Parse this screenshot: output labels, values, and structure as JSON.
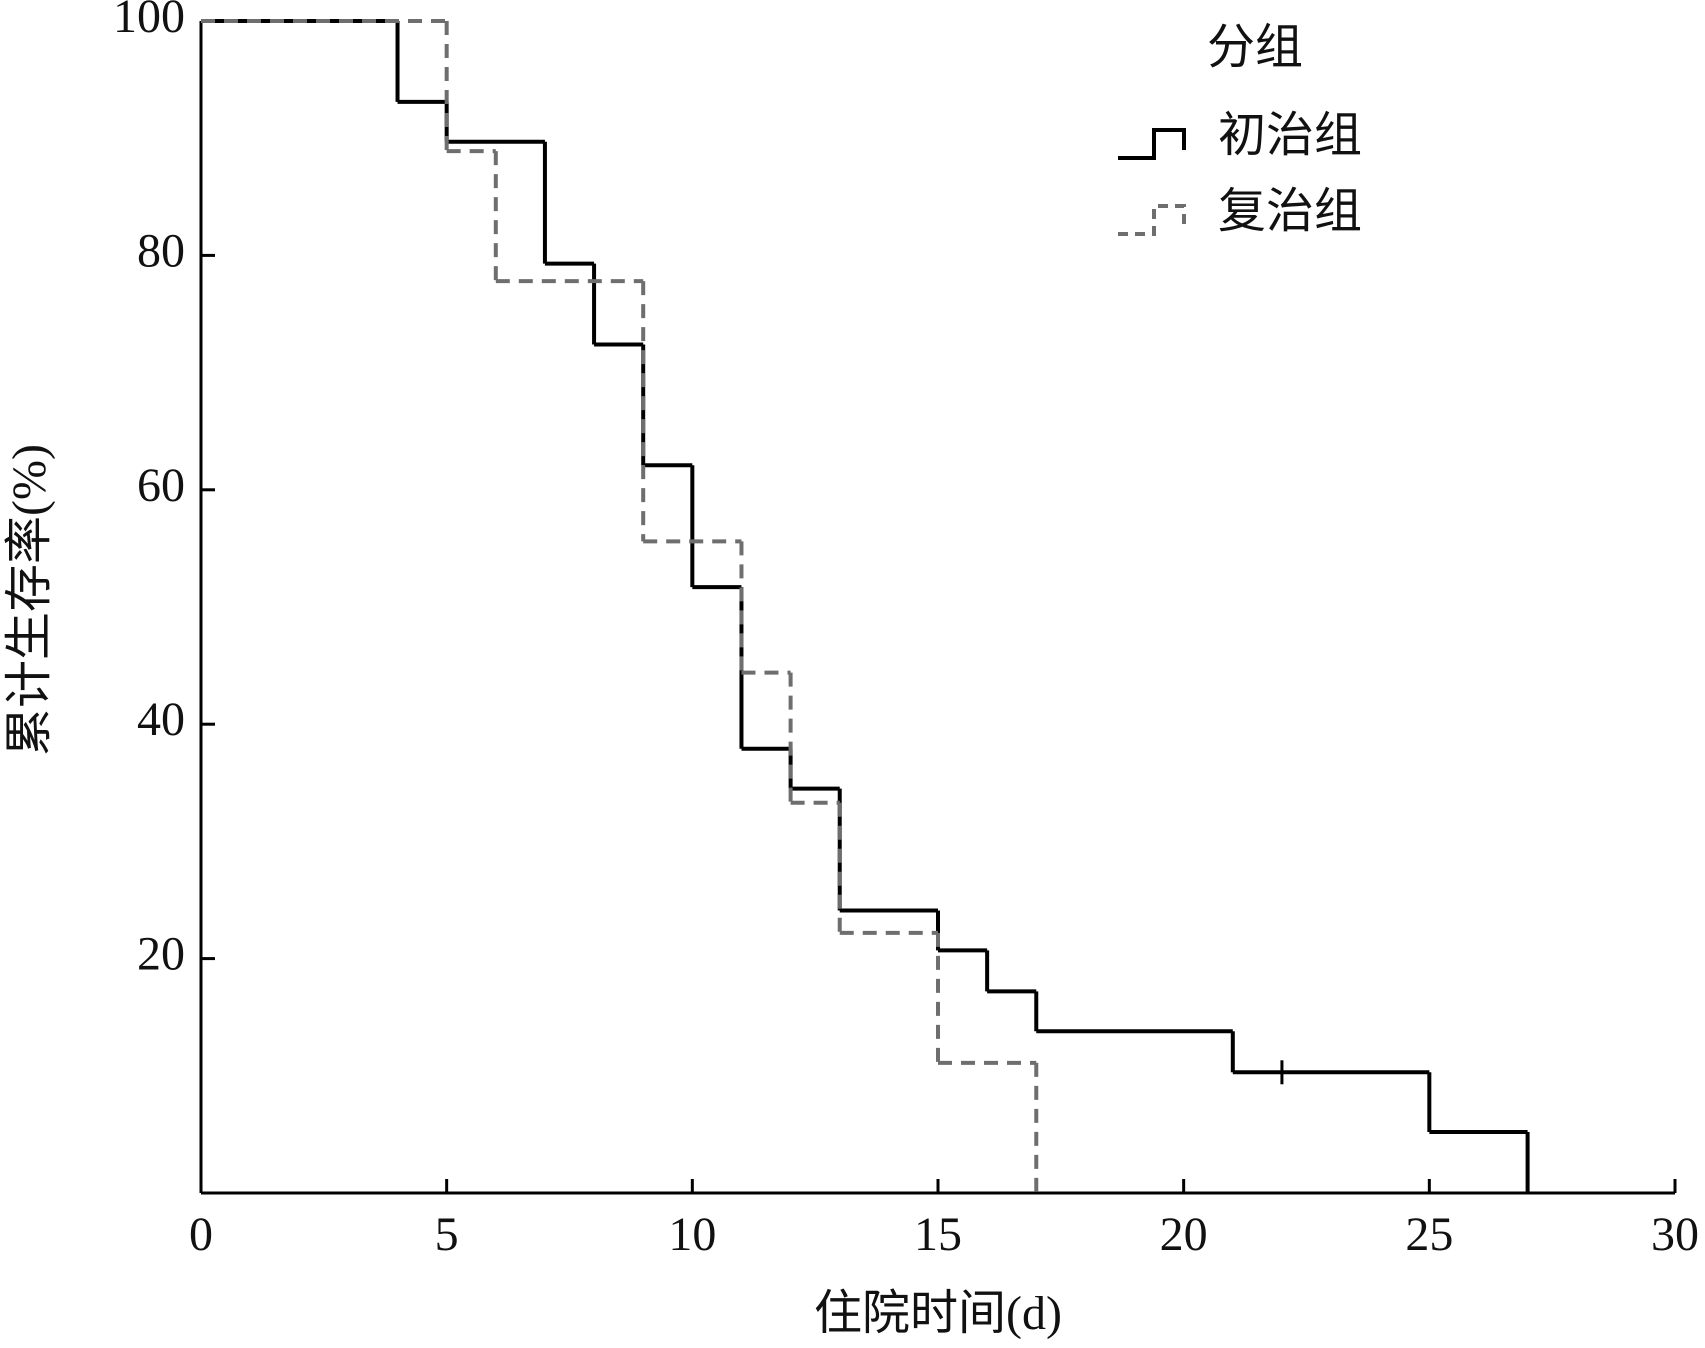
{
  "chart_data": {
    "type": "step",
    "xlabel": "住院时间(d)",
    "ylabel": "累计生存率(%)",
    "xlim": [
      0,
      30
    ],
    "ylim": [
      0,
      100
    ],
    "xticks": [
      0,
      5,
      10,
      15,
      20,
      25,
      30
    ],
    "yticks": [
      20,
      40,
      60,
      80,
      100
    ],
    "legend_title": "分组",
    "legend_loc": "upper right",
    "series": [
      {
        "name": "初治组",
        "color": "#000000",
        "dash": false,
        "x": [
          0,
          4,
          5,
          7,
          8,
          9,
          10,
          11,
          12,
          13,
          15,
          16,
          17,
          21,
          25,
          27
        ],
        "values": [
          100,
          93.1,
          89.7,
          79.3,
          72.4,
          62.1,
          51.7,
          37.9,
          34.5,
          24.1,
          20.7,
          17.2,
          13.8,
          10.3,
          5.2,
          0
        ],
        "censored_x": [
          22
        ],
        "censored_y": [
          10.3
        ]
      },
      {
        "name": "复治组",
        "color": "#6e6e6e",
        "dash": true,
        "x": [
          0,
          5,
          6,
          9,
          11,
          12,
          13,
          15,
          17
        ],
        "values": [
          100,
          88.9,
          77.8,
          55.6,
          44.4,
          33.3,
          22.2,
          11.1,
          0
        ]
      }
    ]
  }
}
